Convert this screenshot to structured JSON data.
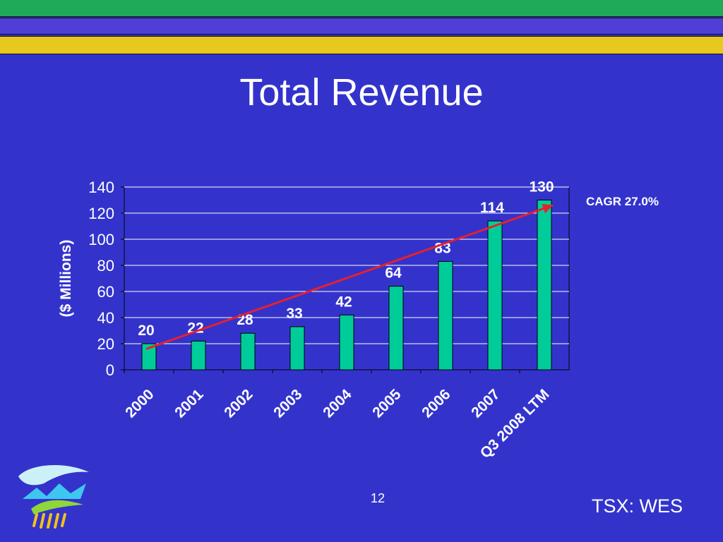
{
  "slide": {
    "title": "Total Revenue",
    "annotation": "CAGR 27.0%",
    "page_number": "12",
    "ticker": "TSX: WES"
  },
  "colors": {
    "background": "#3333cc",
    "band_top": "#1faa5a",
    "band_middle": "#4f3fd6",
    "band_bottom": "#e8c81e",
    "bar": "#00cc99",
    "trend_arrow": "#e8202a"
  },
  "logo": {
    "icon": "company-logo-icon"
  },
  "chart_data": {
    "type": "bar",
    "title": "Total Revenue",
    "categories": [
      "2000",
      "2001",
      "2002",
      "2003",
      "2004",
      "2005",
      "2006",
      "2007",
      "Q3 2008 LTM"
    ],
    "values": [
      20,
      22,
      28,
      33,
      42,
      64,
      83,
      114,
      130
    ],
    "data_labels": [
      "20",
      "22",
      "28",
      "33",
      "42",
      "64",
      "83",
      "114",
      "130"
    ],
    "xlabel": "",
    "ylabel": "($ Millions)",
    "ylim": [
      0,
      140
    ],
    "yticks": [
      0,
      20,
      40,
      60,
      80,
      100,
      120,
      140
    ],
    "grid": true,
    "legend": "none",
    "trend_arrow": {
      "from_value": 16,
      "to_value": 126
    }
  }
}
